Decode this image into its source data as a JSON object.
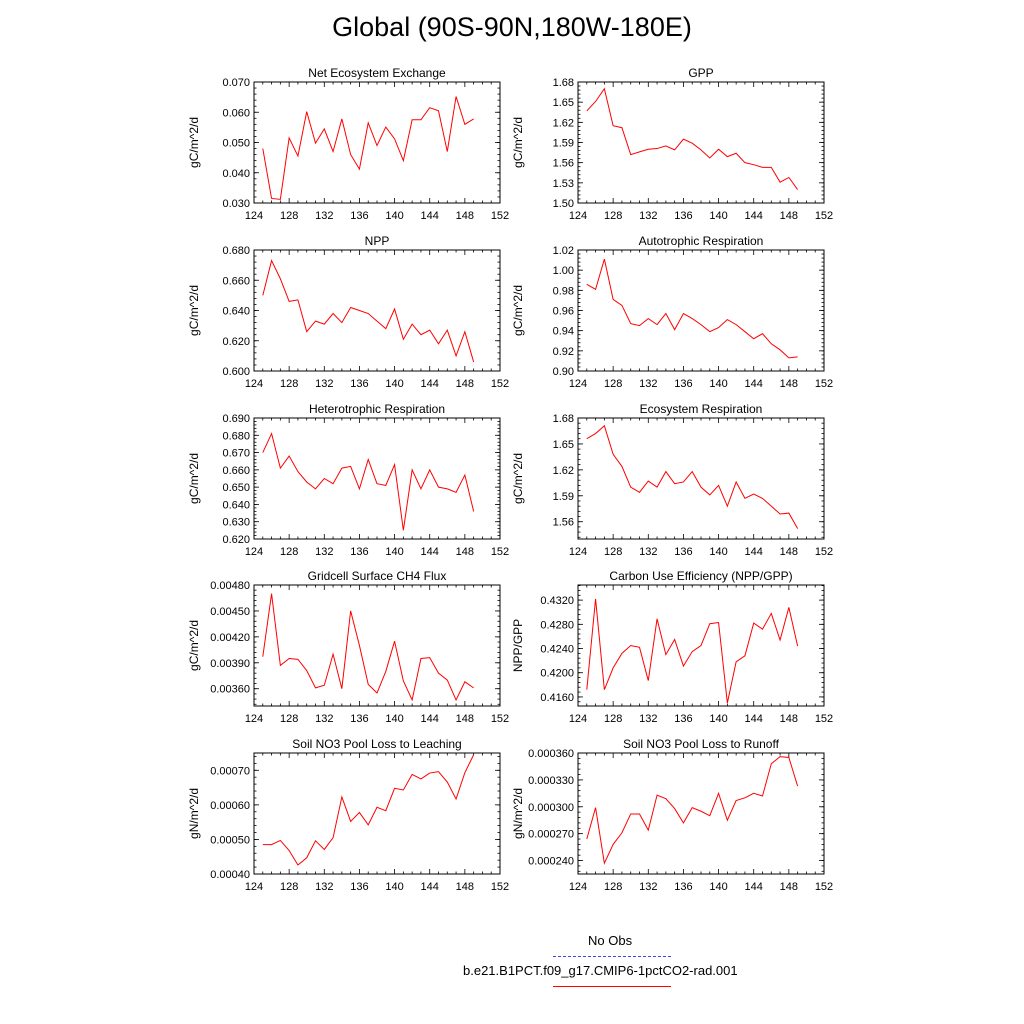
{
  "title": "Global (90S-90N,180W-180E)",
  "colors": {
    "series": "#ff0000",
    "obs": "#4444ee",
    "axis": "#000000"
  },
  "legend": {
    "entries": [
      {
        "label": "No Obs",
        "color": "#4444ee",
        "style": "dashed"
      },
      {
        "label": "b.e21.B1PCT.f09_g17.CMIP6-1pctCO2-rad.001",
        "color": "#ff0000",
        "style": "solid"
      }
    ]
  },
  "chart_data": [
    {
      "type": "line",
      "title": "Net Ecosystem Exchange",
      "ylabel": "gC/m^2/d",
      "xlim": [
        124,
        152
      ],
      "xticks": [
        "124",
        "128",
        "132",
        "136",
        "140",
        "144",
        "148",
        "152"
      ],
      "ylim": [
        0.03,
        0.07
      ],
      "yticks": [
        "0.030",
        "0.040",
        "0.050",
        "0.060",
        "0.070"
      ],
      "x": [
        125,
        126,
        127,
        128,
        129,
        130,
        131,
        132,
        133,
        134,
        135,
        136,
        137,
        138,
        139,
        140,
        141,
        142,
        143,
        144,
        145,
        146,
        147,
        148,
        149
      ],
      "series": [
        {
          "values": [
            0.048,
            0.0315,
            0.0312,
            0.0515,
            0.0455,
            0.0602,
            0.0498,
            0.0545,
            0.047,
            0.0578,
            0.046,
            0.0412,
            0.0565,
            0.049,
            0.0551,
            0.0512,
            0.044,
            0.0575,
            0.0575,
            0.0615,
            0.0605,
            0.047,
            0.0652,
            0.056,
            0.0578
          ]
        }
      ]
    },
    {
      "type": "line",
      "title": "GPP",
      "ylabel": "gC/m^2/d",
      "xlim": [
        124,
        152
      ],
      "xticks": [
        "124",
        "128",
        "132",
        "136",
        "140",
        "144",
        "148",
        "152"
      ],
      "ylim": [
        1.5,
        1.68
      ],
      "yticks": [
        "1.50",
        "1.53",
        "1.56",
        "1.59",
        "1.62",
        "1.65",
        "1.68"
      ],
      "x": [
        125,
        126,
        127,
        128,
        129,
        130,
        131,
        132,
        133,
        134,
        135,
        136,
        137,
        138,
        139,
        140,
        141,
        142,
        143,
        144,
        145,
        146,
        147,
        148,
        149
      ],
      "series": [
        {
          "values": [
            1.637,
            1.651,
            1.67,
            1.615,
            1.612,
            1.572,
            1.576,
            1.58,
            1.581,
            1.585,
            1.579,
            1.595,
            1.589,
            1.579,
            1.567,
            1.58,
            1.569,
            1.574,
            1.56,
            1.557,
            1.553,
            1.553,
            1.531,
            1.538,
            1.52
          ]
        }
      ]
    },
    {
      "type": "line",
      "title": "NPP",
      "ylabel": "gC/m^2/d",
      "xlim": [
        124,
        152
      ],
      "xticks": [
        "124",
        "128",
        "132",
        "136",
        "140",
        "144",
        "148",
        "152"
      ],
      "ylim": [
        0.6,
        0.68
      ],
      "yticks": [
        "0.600",
        "0.620",
        "0.640",
        "0.660",
        "0.680"
      ],
      "x": [
        125,
        126,
        127,
        128,
        129,
        130,
        131,
        132,
        133,
        134,
        135,
        136,
        137,
        138,
        139,
        140,
        141,
        142,
        143,
        144,
        145,
        146,
        147,
        148,
        149
      ],
      "series": [
        {
          "values": [
            0.65,
            0.673,
            0.661,
            0.646,
            0.647,
            0.626,
            0.633,
            0.631,
            0.638,
            0.632,
            0.642,
            0.64,
            0.638,
            0.633,
            0.628,
            0.641,
            0.621,
            0.631,
            0.624,
            0.627,
            0.618,
            0.627,
            0.61,
            0.626,
            0.606
          ]
        }
      ]
    },
    {
      "type": "line",
      "title": "Autotrophic Respiration",
      "ylabel": "gC/m^2/d",
      "xlim": [
        124,
        152
      ],
      "xticks": [
        "124",
        "128",
        "132",
        "136",
        "140",
        "144",
        "148",
        "152"
      ],
      "ylim": [
        0.9,
        1.02
      ],
      "yticks": [
        "0.90",
        "0.92",
        "0.94",
        "0.96",
        "0.98",
        "1.00",
        "1.02"
      ],
      "x": [
        125,
        126,
        127,
        128,
        129,
        130,
        131,
        132,
        133,
        134,
        135,
        136,
        137,
        138,
        139,
        140,
        141,
        142,
        143,
        144,
        145,
        146,
        147,
        148,
        149
      ],
      "series": [
        {
          "values": [
            0.986,
            0.981,
            1.011,
            0.971,
            0.965,
            0.947,
            0.945,
            0.952,
            0.946,
            0.957,
            0.941,
            0.957,
            0.952,
            0.946,
            0.939,
            0.943,
            0.951,
            0.946,
            0.939,
            0.932,
            0.937,
            0.927,
            0.921,
            0.913,
            0.914
          ]
        }
      ]
    },
    {
      "type": "line",
      "title": "Heterotrophic Respiration",
      "ylabel": "gC/m^2/d",
      "xlim": [
        124,
        152
      ],
      "xticks": [
        "124",
        "128",
        "132",
        "136",
        "140",
        "144",
        "148",
        "152"
      ],
      "ylim": [
        0.62,
        0.69
      ],
      "yticks": [
        "0.620",
        "0.630",
        "0.640",
        "0.650",
        "0.660",
        "0.670",
        "0.680",
        "0.690"
      ],
      "x": [
        125,
        126,
        127,
        128,
        129,
        130,
        131,
        132,
        133,
        134,
        135,
        136,
        137,
        138,
        139,
        140,
        141,
        142,
        143,
        144,
        145,
        146,
        147,
        148,
        149
      ],
      "series": [
        {
          "values": [
            0.67,
            0.681,
            0.661,
            0.668,
            0.659,
            0.653,
            0.649,
            0.655,
            0.652,
            0.661,
            0.662,
            0.649,
            0.666,
            0.652,
            0.651,
            0.663,
            0.625,
            0.66,
            0.649,
            0.66,
            0.65,
            0.649,
            0.647,
            0.657,
            0.636
          ]
        }
      ]
    },
    {
      "type": "line",
      "title": "Ecosystem Respiration",
      "ylabel": "gC/m^2/d",
      "xlim": [
        124,
        152
      ],
      "xticks": [
        "124",
        "128",
        "132",
        "136",
        "140",
        "144",
        "148",
        "152"
      ],
      "ylim": [
        1.54,
        1.68
      ],
      "yticks": [
        "1.56",
        "1.59",
        "1.62",
        "1.65",
        "1.68"
      ],
      "x": [
        125,
        126,
        127,
        128,
        129,
        130,
        131,
        132,
        133,
        134,
        135,
        136,
        137,
        138,
        139,
        140,
        141,
        142,
        143,
        144,
        145,
        146,
        147,
        148,
        149
      ],
      "series": [
        {
          "values": [
            1.656,
            1.662,
            1.671,
            1.638,
            1.624,
            1.6,
            1.594,
            1.607,
            1.6,
            1.618,
            1.604,
            1.606,
            1.618,
            1.6,
            1.591,
            1.602,
            1.578,
            1.606,
            1.587,
            1.592,
            1.587,
            1.578,
            1.569,
            1.57,
            1.552
          ]
        }
      ]
    },
    {
      "type": "line",
      "title": "Gridcell Surface CH4 Flux",
      "ylabel": "gC/m^2/d",
      "xlim": [
        124,
        152
      ],
      "xticks": [
        "124",
        "128",
        "132",
        "136",
        "140",
        "144",
        "148",
        "152"
      ],
      "ylim": [
        0.0034,
        0.0048
      ],
      "yticks": [
        "0.00360",
        "0.00390",
        "0.00420",
        "0.00450",
        "0.00480"
      ],
      "x": [
        125,
        126,
        127,
        128,
        129,
        130,
        131,
        132,
        133,
        134,
        135,
        136,
        137,
        138,
        139,
        140,
        141,
        142,
        143,
        144,
        145,
        146,
        147,
        148,
        149
      ],
      "series": [
        {
          "values": [
            0.00397,
            0.0047,
            0.00387,
            0.00395,
            0.00394,
            0.00381,
            0.00361,
            0.00364,
            0.004,
            0.0036,
            0.0045,
            0.0041,
            0.00365,
            0.00355,
            0.0038,
            0.00415,
            0.00369,
            0.00347,
            0.00395,
            0.00396,
            0.00378,
            0.0037,
            0.00347,
            0.00368,
            0.00361
          ]
        }
      ]
    },
    {
      "type": "line",
      "title": "Carbon Use Efficiency (NPP/GPP)",
      "ylabel": "NPP/GPP",
      "xlim": [
        124,
        152
      ],
      "xticks": [
        "124",
        "128",
        "132",
        "136",
        "140",
        "144",
        "148",
        "152"
      ],
      "ylim": [
        0.4145,
        0.4345
      ],
      "yticks": [
        "0.4160",
        "0.4200",
        "0.4240",
        "0.4280",
        "0.4320"
      ],
      "x": [
        125,
        126,
        127,
        128,
        129,
        130,
        131,
        132,
        133,
        134,
        135,
        136,
        137,
        138,
        139,
        140,
        141,
        142,
        143,
        144,
        145,
        146,
        147,
        148,
        149
      ],
      "series": [
        {
          "values": [
            0.4172,
            0.4322,
            0.4172,
            0.4208,
            0.4232,
            0.4245,
            0.4242,
            0.4187,
            0.4289,
            0.423,
            0.4255,
            0.4211,
            0.4235,
            0.4245,
            0.4281,
            0.4283,
            0.415,
            0.4218,
            0.4228,
            0.4282,
            0.4272,
            0.4298,
            0.4254,
            0.4308,
            0.4244
          ]
        }
      ]
    },
    {
      "type": "line",
      "title": "Soil NO3 Pool Loss to Leaching",
      "ylabel": "gN/m^2/d",
      "xlim": [
        124,
        152
      ],
      "xticks": [
        "124",
        "128",
        "132",
        "136",
        "140",
        "144",
        "148",
        "152"
      ],
      "ylim": [
        0.0004,
        0.00075
      ],
      "yticks": [
        "0.00040",
        "0.00050",
        "0.00060",
        "0.00070"
      ],
      "x": [
        125,
        126,
        127,
        128,
        129,
        130,
        131,
        132,
        133,
        134,
        135,
        136,
        137,
        138,
        139,
        140,
        141,
        142,
        143,
        144,
        145,
        146,
        147,
        148,
        149
      ],
      "series": [
        {
          "values": [
            0.000485,
            0.000485,
            0.000497,
            0.000468,
            0.000426,
            0.000447,
            0.000496,
            0.000471,
            0.000505,
            0.000623,
            0.000552,
            0.000578,
            0.000542,
            0.000593,
            0.000583,
            0.000648,
            0.000643,
            0.000688,
            0.000675,
            0.000692,
            0.000696,
            0.000666,
            0.000617,
            0.000693,
            0.000745
          ]
        }
      ]
    },
    {
      "type": "line",
      "title": "Soil NO3 Pool Loss to Runoff",
      "ylabel": "gN/m^2/d",
      "xlim": [
        124,
        152
      ],
      "xticks": [
        "124",
        "128",
        "132",
        "136",
        "140",
        "144",
        "148",
        "152"
      ],
      "ylim": [
        0.000225,
        0.00036
      ],
      "yticks": [
        "0.000240",
        "0.000270",
        "0.000300",
        "0.000330",
        "0.000360"
      ],
      "x": [
        125,
        126,
        127,
        128,
        129,
        130,
        131,
        132,
        133,
        134,
        135,
        136,
        137,
        138,
        139,
        140,
        141,
        142,
        143,
        144,
        145,
        146,
        147,
        148,
        149
      ],
      "series": [
        {
          "values": [
            0.000264,
            0.000299,
            0.000237,
            0.000258,
            0.000271,
            0.000292,
            0.000292,
            0.000274,
            0.000313,
            0.000309,
            0.000298,
            0.000282,
            0.000299,
            0.000295,
            0.00029,
            0.000315,
            0.000285,
            0.000307,
            0.00031,
            0.000315,
            0.000312,
            0.000348,
            0.000356,
            0.000355,
            0.000323
          ]
        }
      ]
    }
  ]
}
